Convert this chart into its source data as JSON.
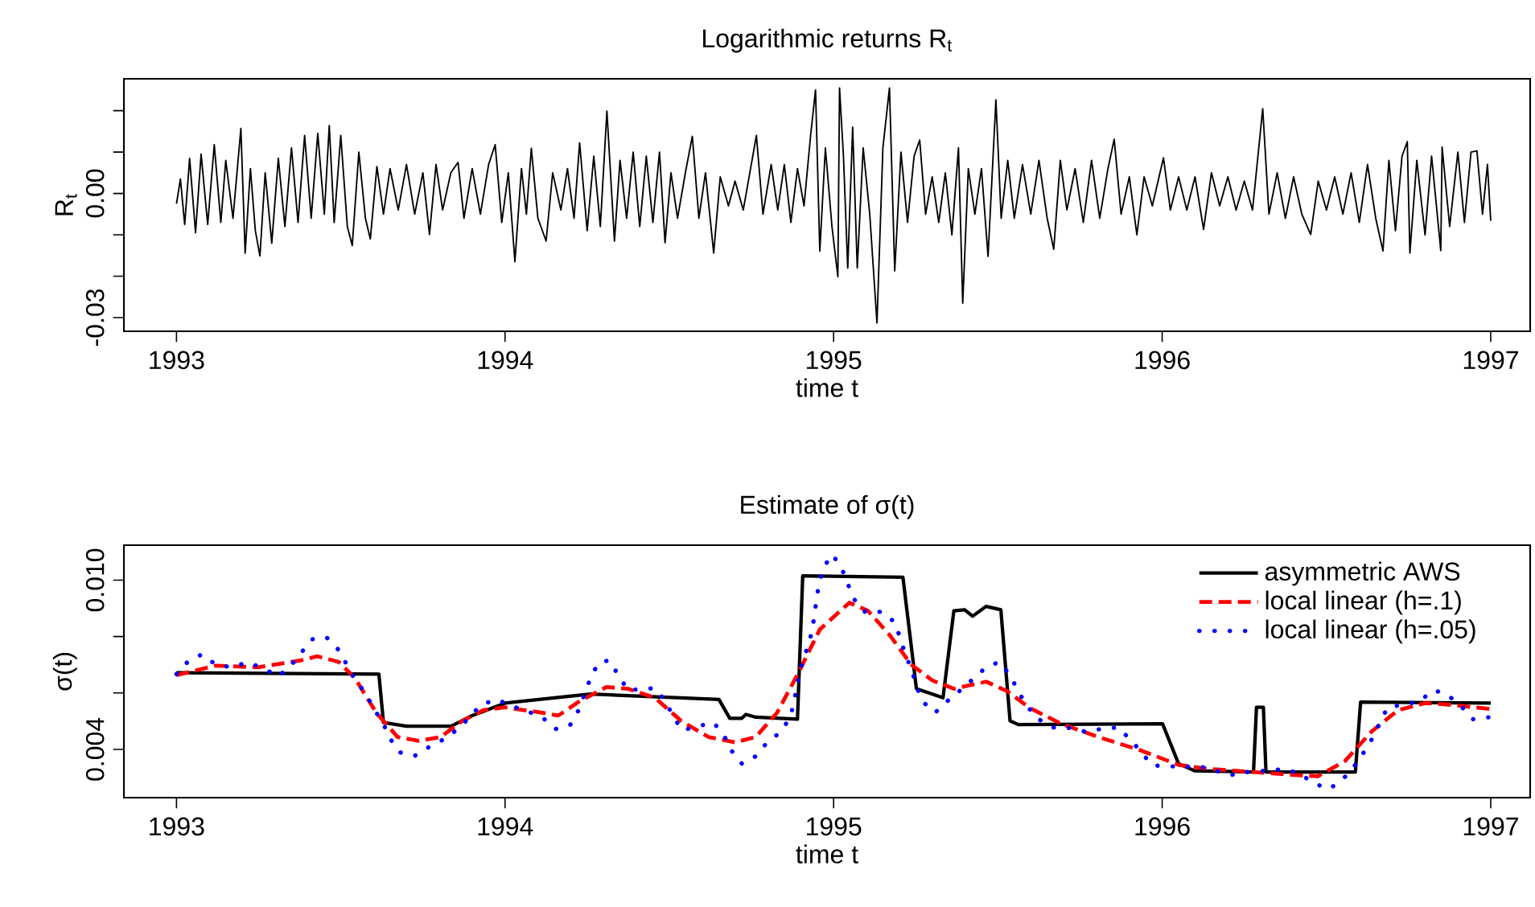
{
  "chart_data": [
    {
      "type": "line",
      "title": "Logarithmic returns R$_{t}$",
      "xlabel": "time t",
      "ylabel": "R$_{t}$",
      "xlim": [
        1992.84,
        1997.12
      ],
      "ylim": [
        -0.0333,
        0.0277
      ],
      "xticks": [
        1993,
        1994,
        1995,
        1996,
        1997
      ],
      "yticks": [
        {
          "value": -0.03,
          "label": "-0.03"
        },
        {
          "value": -0.02,
          "label": null
        },
        {
          "value": -0.01,
          "label": null
        },
        {
          "value": 0,
          "label": "0.00"
        },
        {
          "value": 0.01,
          "label": null
        },
        {
          "value": 0.02,
          "label": null
        }
      ],
      "series": [
        {
          "color": "#000000",
          "line_style": "solid",
          "x": [
            1993.0,
            1993.012,
            1993.025,
            1993.04,
            1993.058,
            1993.075,
            1993.095,
            1993.115,
            1993.135,
            1993.15,
            1993.172,
            1993.196,
            1993.209,
            1993.225,
            1993.24,
            1993.254,
            1993.27,
            1993.29,
            1993.31,
            1993.33,
            1993.35,
            1993.37,
            1993.39,
            1993.41,
            1993.43,
            1993.45,
            1993.465,
            1993.48,
            1993.5,
            1993.52,
            1993.535,
            1993.555,
            1993.575,
            1993.59,
            1993.61,
            1993.63,
            1993.65,
            1993.675,
            1993.7,
            1993.725,
            1993.75,
            1993.77,
            1993.79,
            1993.81,
            1993.835,
            1993.857,
            1993.875,
            1993.9,
            1993.925,
            1993.95,
            1993.97,
            1993.99,
            1994.01,
            1994.03,
            1994.05,
            1994.065,
            1994.08,
            1994.1,
            1994.125,
            1994.145,
            1994.17,
            1994.19,
            1994.21,
            1994.227,
            1994.25,
            1994.27,
            1994.29,
            1994.31,
            1994.333,
            1994.35,
            1994.37,
            1994.39,
            1994.41,
            1994.43,
            1994.45,
            1994.47,
            1994.487,
            1994.505,
            1994.525,
            1994.55,
            1994.57,
            1994.59,
            1994.61,
            1994.635,
            1994.655,
            1994.68,
            1994.7,
            1994.725,
            1994.745,
            1994.765,
            1994.785,
            1994.81,
            1994.83,
            1994.85,
            1994.87,
            1994.89,
            1994.91,
            1994.93,
            1994.945,
            1994.958,
            1994.975,
            1994.995,
            1995.013,
            1995.018,
            1995.03,
            1995.043,
            1995.058,
            1995.072,
            1995.09,
            1995.11,
            1995.132,
            1995.15,
            1995.17,
            1995.186,
            1995.205,
            1995.225,
            1995.245,
            1995.262,
            1995.28,
            1995.3,
            1995.32,
            1995.34,
            1995.36,
            1995.38,
            1995.393,
            1995.41,
            1995.43,
            1995.45,
            1995.47,
            1995.494,
            1995.51,
            1995.53,
            1995.55,
            1995.575,
            1995.6,
            1995.625,
            1995.65,
            1995.67,
            1995.69,
            1995.71,
            1995.735,
            1995.76,
            1995.785,
            1995.81,
            1995.835,
            1995.854,
            1995.875,
            1995.9,
            1995.923,
            1995.945,
            1995.97,
            1996.004,
            1996.025,
            1996.05,
            1996.075,
            1996.1,
            1996.126,
            1996.15,
            1996.175,
            1996.2,
            1996.225,
            1996.25,
            1996.275,
            1996.306,
            1996.325,
            1996.35,
            1996.375,
            1996.4,
            1996.425,
            1996.452,
            1996.475,
            1996.5,
            1996.525,
            1996.55,
            1996.575,
            1996.6,
            1996.625,
            1996.65,
            1996.672,
            1996.69,
            1996.71,
            1996.73,
            1996.746,
            1996.754,
            1996.775,
            1996.8,
            1996.82,
            1996.848,
            1996.852,
            1996.875,
            1996.9,
            1996.92,
            1996.94,
            1996.958,
            1996.975,
            1996.99,
            1997.0
          ],
          "values": [
            -0.0025,
            0.0035,
            -0.0075,
            0.0085,
            -0.0095,
            0.0095,
            -0.0075,
            0.0118,
            -0.007,
            0.008,
            -0.006,
            0.0157,
            -0.0144,
            0.006,
            -0.009,
            -0.0151,
            0.005,
            -0.012,
            0.0085,
            -0.008,
            0.011,
            -0.007,
            0.014,
            -0.006,
            0.0145,
            -0.005,
            0.0164,
            -0.007,
            0.014,
            -0.008,
            -0.0126,
            0.01,
            -0.006,
            -0.011,
            0.0065,
            -0.005,
            0.006,
            -0.004,
            0.007,
            -0.005,
            0.005,
            -0.0099,
            0.007,
            -0.004,
            0.005,
            0.0075,
            -0.006,
            0.006,
            -0.005,
            0.007,
            0.0118,
            -0.007,
            0.005,
            -0.0165,
            0.006,
            -0.005,
            0.0109,
            -0.006,
            -0.0115,
            0.005,
            -0.004,
            0.006,
            -0.006,
            0.0122,
            -0.009,
            0.009,
            -0.008,
            0.0199,
            -0.0115,
            0.008,
            -0.006,
            0.01,
            -0.008,
            0.009,
            -0.007,
            0.01,
            -0.0119,
            0.005,
            -0.006,
            0.0055,
            0.0138,
            -0.006,
            0.005,
            -0.0144,
            0.004,
            -0.003,
            0.003,
            -0.004,
            0.005,
            0.014,
            -0.005,
            0.007,
            -0.004,
            0.007,
            -0.007,
            0.006,
            -0.003,
            0.014,
            0.025,
            -0.0139,
            0.011,
            -0.008,
            -0.0201,
            0.0255,
            0.009,
            -0.018,
            0.016,
            -0.018,
            0.011,
            -0.005,
            -0.0313,
            0.011,
            0.0255,
            -0.0187,
            0.01,
            -0.007,
            0.009,
            0.0129,
            -0.005,
            0.004,
            -0.007,
            0.005,
            -0.01,
            0.011,
            -0.0265,
            0.006,
            -0.005,
            0.006,
            -0.0152,
            0.0226,
            -0.006,
            0.008,
            -0.006,
            0.007,
            -0.005,
            0.008,
            -0.006,
            -0.0135,
            0.008,
            -0.004,
            0.006,
            -0.007,
            0.008,
            -0.006,
            0.006,
            0.0131,
            -0.005,
            0.004,
            -0.01,
            0.004,
            -0.003,
            0.0086,
            -0.004,
            0.004,
            -0.004,
            0.004,
            -0.0087,
            0.005,
            -0.003,
            0.004,
            -0.004,
            0.003,
            -0.004,
            0.0205,
            -0.005,
            0.005,
            -0.006,
            0.004,
            -0.005,
            -0.0099,
            0.003,
            -0.004,
            0.004,
            -0.005,
            0.005,
            -0.007,
            0.007,
            -0.006,
            -0.0139,
            0.008,
            -0.009,
            0.009,
            0.0125,
            -0.0144,
            0.008,
            -0.01,
            0.009,
            -0.0138,
            0.0112,
            -0.008,
            0.01,
            -0.007,
            0.01,
            0.0103,
            -0.005,
            0.007,
            -0.0066
          ]
        }
      ]
    },
    {
      "type": "line",
      "title": "Estimate of σ(t)",
      "xlabel": "time t",
      "ylabel": "σ(t)",
      "xlim": [
        1992.84,
        1997.12
      ],
      "ylim": [
        0.00229,
        0.01124
      ],
      "legend": "top right",
      "xticks": [
        1993,
        1994,
        1995,
        1996,
        1997
      ],
      "yticks": [
        {
          "value": 0.004,
          "label": "0.004"
        },
        {
          "value": 0.006,
          "label": null
        },
        {
          "value": 0.008,
          "label": null
        },
        {
          "value": 0.01,
          "label": "0.010"
        }
      ],
      "series": [
        {
          "name": "asymmetric AWS",
          "color": "#000000",
          "line_style": "solid",
          "x": [
            1993.0,
            1993.616,
            1993.63,
            1993.7,
            1993.836,
            1993.9,
            1994.0,
            1994.26,
            1994.651,
            1994.684,
            1994.72,
            1994.733,
            1994.763,
            1994.89,
            1994.906,
            1995.211,
            1995.252,
            1995.333,
            1995.366,
            1995.399,
            1995.423,
            1995.464,
            1995.509,
            1995.537,
            1995.562,
            1996.001,
            1996.05,
            1996.099,
            1996.278,
            1996.287,
            1996.308,
            1996.316,
            1996.588,
            1996.604,
            1997.0
          ],
          "values": [
            0.00672,
            0.00667,
            0.00495,
            0.00482,
            0.00482,
            0.0052,
            0.00564,
            0.00596,
            0.00577,
            0.0051,
            0.0051,
            0.00524,
            0.00514,
            0.00507,
            0.01015,
            0.0101,
            0.00615,
            0.00583,
            0.00891,
            0.00895,
            0.00872,
            0.00907,
            0.00895,
            0.00501,
            0.00488,
            0.00491,
            0.00349,
            0.00324,
            0.0032,
            0.00549,
            0.00549,
            0.0032,
            0.0032,
            0.00568,
            0.00564
          ]
        },
        {
          "name": "local linear (h=.1)",
          "color": "#ff0000",
          "line_style": "dashed",
          "x": [
            1993.0,
            1993.119,
            1993.249,
            1993.38,
            1993.429,
            1993.494,
            1993.543,
            1993.608,
            1993.673,
            1993.738,
            1993.804,
            1993.869,
            1993.934,
            1993.999,
            1994.097,
            1994.162,
            1994.227,
            1994.309,
            1994.374,
            1994.456,
            1994.537,
            1994.619,
            1994.7,
            1994.763,
            1994.828,
            1994.893,
            1994.958,
            1995.048,
            1995.105,
            1995.17,
            1995.236,
            1995.301,
            1995.366,
            1995.464,
            1995.529,
            1995.594,
            1995.692,
            1995.806,
            1995.936,
            1996.05,
            1996.148,
            1996.278,
            1996.393,
            1996.474,
            1996.556,
            1996.637,
            1996.718,
            1996.8,
            1996.881,
            1997.0
          ],
          "values": [
            0.00663,
            0.00697,
            0.00691,
            0.00716,
            0.0073,
            0.0071,
            0.00653,
            0.0053,
            0.00444,
            0.0043,
            0.00444,
            0.005,
            0.00539,
            0.00549,
            0.00533,
            0.0052,
            0.00571,
            0.00621,
            0.00615,
            0.00583,
            0.005,
            0.00444,
            0.00425,
            0.00444,
            0.0053,
            0.00672,
            0.00825,
            0.0092,
            0.00891,
            0.00806,
            0.00701,
            0.00644,
            0.00615,
            0.0064,
            0.00606,
            0.00549,
            0.00491,
            0.00444,
            0.00396,
            0.00345,
            0.0033,
            0.0032,
            0.0031,
            0.00305,
            0.00358,
            0.00463,
            0.00539,
            0.00564,
            0.00558,
            0.00543
          ]
        },
        {
          "name": "local linear (h=.05)",
          "color": "#0000ff",
          "line_style": "dotted",
          "x": [
            1993.0,
            1993.037,
            1993.078,
            1993.119,
            1993.168,
            1993.217,
            1993.266,
            1993.31,
            1993.347,
            1993.38,
            1993.412,
            1993.456,
            1993.494,
            1993.518,
            1993.543,
            1993.575,
            1993.6,
            1993.628,
            1993.649,
            1993.678,
            1993.725,
            1993.771,
            1993.817,
            1993.856,
            1993.893,
            1993.926,
            1993.975,
            1994.024,
            1994.073,
            1994.117,
            1994.154,
            1994.198,
            1994.224,
            1994.26,
            1994.284,
            1994.317,
            1994.345,
            1994.374,
            1994.456,
            1994.488,
            1994.513,
            1994.54,
            1994.586,
            1994.635,
            1994.667,
            1994.689,
            1994.721,
            1994.765,
            1994.795,
            1994.836,
            1994.869,
            1994.901,
            1994.918,
            1994.934,
            1994.955,
            1994.971,
            1994.996,
            1995.024,
            1995.043,
            1995.064,
            1995.097,
            1995.146,
            1995.187,
            1995.219,
            1995.239,
            1995.252,
            1995.276,
            1995.309,
            1995.346,
            1995.382,
            1995.423,
            1995.464,
            1995.504,
            1995.537,
            1995.562,
            1995.586,
            1995.619,
            1995.668,
            1995.716,
            1995.765,
            1995.814,
            1995.868,
            1995.936,
            1995.969,
            1996.05,
            1996.116,
            1996.164,
            1996.213,
            1996.262,
            1996.311,
            1996.368,
            1996.417,
            1996.458,
            1996.507,
            1996.548,
            1996.597,
            1996.637,
            1996.686,
            1996.735,
            1996.784,
            1996.825,
            1996.866,
            1996.913,
            1996.946,
            1996.995
          ],
          "values": [
            0.00667,
            0.00714,
            0.00737,
            0.00701,
            0.00691,
            0.00709,
            0.00686,
            0.00659,
            0.00695,
            0.00743,
            0.0079,
            0.00798,
            0.00752,
            0.00701,
            0.00648,
            0.006,
            0.00545,
            0.00495,
            0.0044,
            0.0039,
            0.00377,
            0.0041,
            0.00438,
            0.00472,
            0.00514,
            0.00558,
            0.00577,
            0.00552,
            0.00533,
            0.0051,
            0.00472,
            0.00486,
            0.00539,
            0.00653,
            0.00707,
            0.00716,
            0.00663,
            0.0061,
            0.00617,
            0.00571,
            0.00514,
            0.00467,
            0.00482,
            0.00495,
            0.00448,
            0.00396,
            0.00349,
            0.00377,
            0.00421,
            0.00459,
            0.00514,
            0.00691,
            0.00754,
            0.00815,
            0.00987,
            0.01048,
            0.01091,
            0.01044,
            0.00987,
            0.0093,
            0.00886,
            0.00888,
            0.0085,
            0.00735,
            0.00678,
            0.00621,
            0.00564,
            0.0053,
            0.00571,
            0.00606,
            0.00648,
            0.00691,
            0.0071,
            0.00663,
            0.00606,
            0.00558,
            0.0051,
            0.00478,
            0.00476,
            0.00463,
            0.00472,
            0.00478,
            0.00392,
            0.00343,
            0.00339,
            0.00339,
            0.00324,
            0.0031,
            0.0032,
            0.00324,
            0.0033,
            0.00316,
            0.00282,
            0.00259,
            0.00291,
            0.00358,
            0.00434,
            0.00549,
            0.00558,
            0.00571,
            0.0061,
            0.00596,
            0.00549,
            0.00507,
            0.00514
          ]
        }
      ]
    }
  ]
}
